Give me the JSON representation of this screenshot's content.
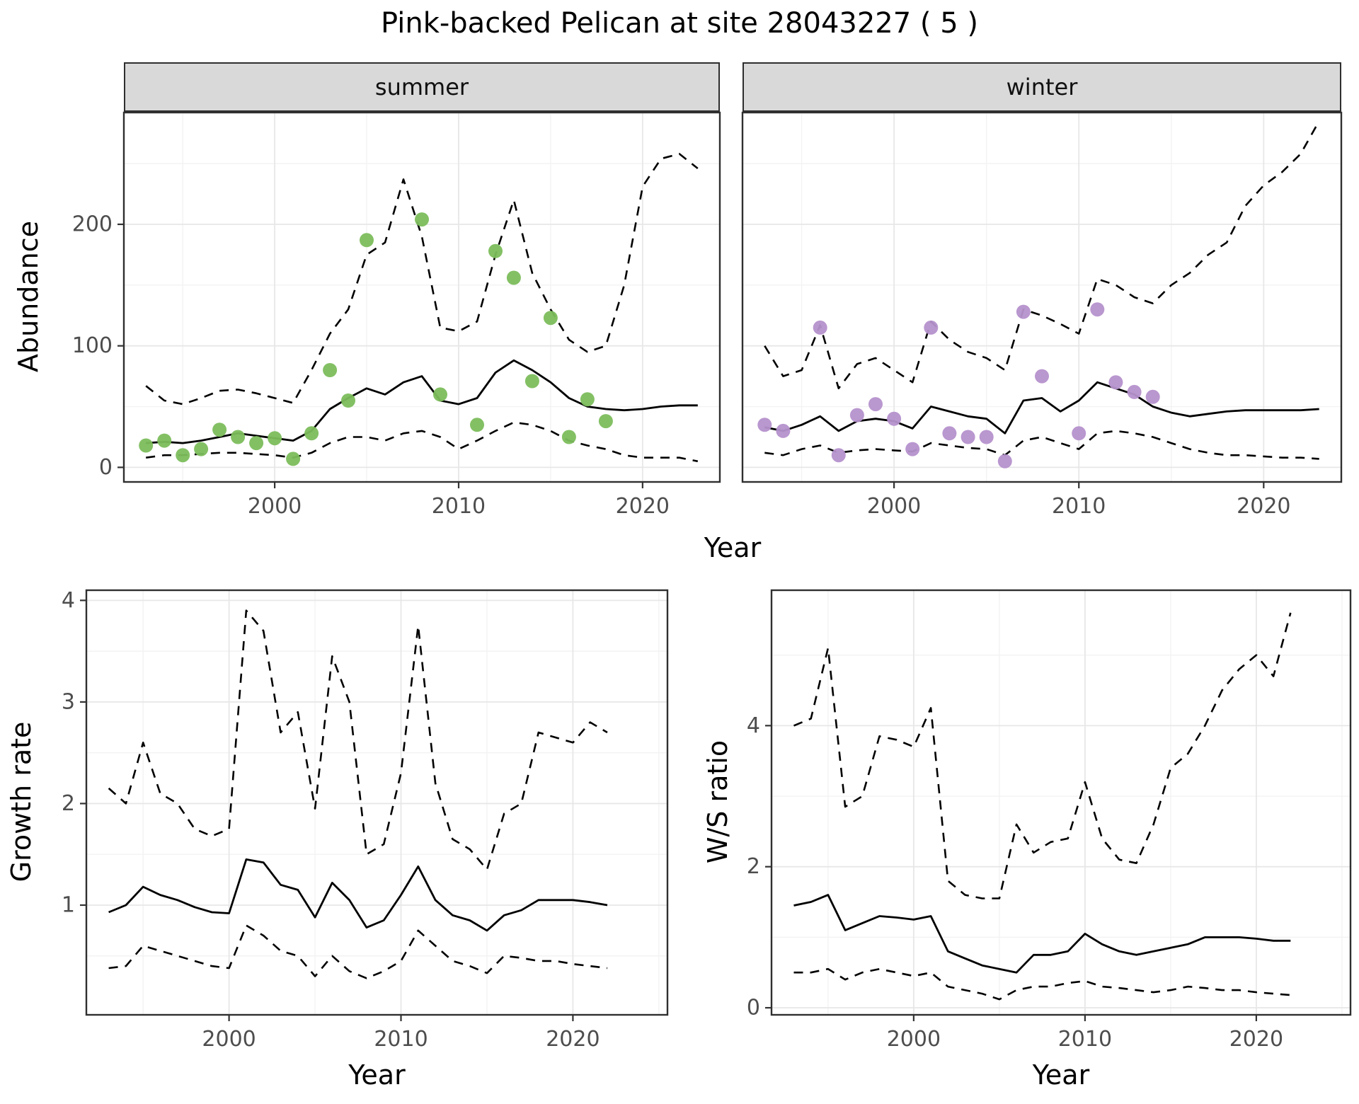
{
  "figure": {
    "title": "Pink-backed Pelican at site 28043227 ( 5 )",
    "top_xlabel": "Year",
    "abundance_ylabel": "Abundance",
    "facets": [
      {
        "label": "summer"
      },
      {
        "label": "winter"
      }
    ]
  },
  "colors": {
    "summer_points": "#7cbd5c",
    "winter_points": "#b591cc",
    "line": "#000000",
    "strip_bg": "#d9d9d9",
    "panel_border": "#2f2f2f",
    "grid_major": "#e7e7e7",
    "tick_label": "#4d4d4d"
  },
  "chart_data": [
    {
      "id": "abundance_summer",
      "type": "line",
      "title": "summer",
      "xlabel": "Year",
      "ylabel": "Abundance",
      "xlim": [
        1991.8,
        2024.2
      ],
      "ylim": [
        -12,
        292
      ],
      "xticks": [
        2000,
        2010,
        2020
      ],
      "yticks": [
        0,
        100,
        200
      ],
      "show_ytick_labels": true,
      "grid": true,
      "legend": "none",
      "x": [
        1993,
        1994,
        1995,
        1996,
        1997,
        1998,
        1999,
        2000,
        2001,
        2002,
        2003,
        2004,
        2005,
        2006,
        2007,
        2008,
        2009,
        2010,
        2011,
        2012,
        2013,
        2014,
        2015,
        2016,
        2017,
        2018,
        2019,
        2020,
        2021,
        2022,
        2023
      ],
      "series": [
        {
          "name": "upper_ci",
          "style": "dashed",
          "values": [
            67,
            55,
            52,
            57,
            63,
            64,
            61,
            57,
            53,
            80,
            110,
            130,
            175,
            185,
            237,
            190,
            115,
            112,
            120,
            175,
            220,
            160,
            130,
            105,
            95,
            100,
            150,
            231,
            254,
            258,
            246
          ]
        },
        {
          "name": "median",
          "style": "solid",
          "values": [
            20,
            21,
            20,
            22,
            25,
            28,
            26,
            24,
            22,
            30,
            48,
            57,
            65,
            60,
            70,
            75,
            55,
            52,
            57,
            78,
            88,
            80,
            70,
            57,
            50,
            48,
            47,
            48,
            50,
            51,
            51
          ]
        },
        {
          "name": "lower_ci",
          "style": "dashed",
          "values": [
            8,
            10,
            10,
            11,
            12,
            12,
            11,
            10,
            8,
            12,
            20,
            25,
            25,
            22,
            28,
            30,
            25,
            15,
            22,
            30,
            37,
            35,
            30,
            22,
            18,
            15,
            10,
            8,
            8,
            8,
            5
          ]
        }
      ],
      "points": {
        "name": "observed_counts",
        "color": "#7cbd5c",
        "x": [
          1993,
          1994,
          1995,
          1996,
          1997,
          1998,
          1999,
          2000,
          2001,
          2002,
          2003,
          2004,
          2005,
          2008,
          2009,
          2011,
          2012,
          2013,
          2014,
          2015,
          2016,
          2017,
          2018
        ],
        "y": [
          18,
          22,
          10,
          15,
          31,
          25,
          20,
          24,
          7,
          28,
          80,
          55,
          187,
          204,
          60,
          35,
          178,
          156,
          71,
          123,
          25,
          56,
          38
        ]
      }
    },
    {
      "id": "abundance_winter",
      "type": "line",
      "title": "winter",
      "xlabel": "Year",
      "ylabel": "Abundance",
      "xlim": [
        1991.8,
        2024.2
      ],
      "ylim": [
        -12,
        292
      ],
      "xticks": [
        2000,
        2010,
        2020
      ],
      "yticks": [
        0,
        100,
        200
      ],
      "show_ytick_labels": false,
      "grid": true,
      "legend": "none",
      "x": [
        1993,
        1994,
        1995,
        1996,
        1997,
        1998,
        1999,
        2000,
        2001,
        2002,
        2003,
        2004,
        2005,
        2006,
        2007,
        2008,
        2009,
        2010,
        2011,
        2012,
        2013,
        2014,
        2015,
        2016,
        2017,
        2018,
        2019,
        2020,
        2021,
        2022,
        2023
      ],
      "series": [
        {
          "name": "upper_ci",
          "style": "dashed",
          "values": [
            100,
            75,
            80,
            117,
            65,
            85,
            90,
            80,
            70,
            120,
            105,
            95,
            90,
            80,
            130,
            125,
            118,
            110,
            155,
            150,
            140,
            135,
            150,
            160,
            175,
            185,
            215,
            232,
            243,
            258,
            285
          ]
        },
        {
          "name": "median",
          "style": "solid",
          "values": [
            33,
            30,
            35,
            42,
            30,
            38,
            40,
            38,
            32,
            50,
            46,
            42,
            40,
            28,
            55,
            57,
            46,
            55,
            70,
            65,
            60,
            50,
            45,
            42,
            44,
            46,
            47,
            47,
            47,
            47,
            48
          ]
        },
        {
          "name": "lower_ci",
          "style": "dashed",
          "values": [
            12,
            10,
            15,
            18,
            12,
            14,
            15,
            14,
            13,
            20,
            18,
            16,
            15,
            10,
            22,
            25,
            20,
            15,
            28,
            30,
            28,
            25,
            20,
            15,
            12,
            10,
            10,
            9,
            8,
            8,
            7
          ]
        }
      ],
      "points": {
        "name": "observed_counts",
        "color": "#b591cc",
        "x": [
          1993,
          1994,
          1996,
          1997,
          1998,
          1999,
          2000,
          2001,
          2002,
          2003,
          2004,
          2005,
          2006,
          2007,
          2008,
          2010,
          2011,
          2012,
          2013,
          2014
        ],
        "y": [
          35,
          30,
          115,
          10,
          43,
          52,
          40,
          15,
          115,
          28,
          25,
          25,
          5,
          128,
          75,
          28,
          130,
          70,
          62,
          58
        ]
      }
    },
    {
      "id": "growth_rate",
      "type": "line",
      "title": "",
      "xlabel": "Year",
      "ylabel": "Growth rate",
      "xlim": [
        1991.7,
        2025.5
      ],
      "ylim": [
        -0.08,
        4.1
      ],
      "xticks": [
        2000,
        2010,
        2020
      ],
      "yticks": [
        1,
        2,
        3,
        4
      ],
      "show_ytick_labels": true,
      "grid": true,
      "legend": "none",
      "x": [
        1993,
        1994,
        1995,
        1996,
        1997,
        1998,
        1999,
        2000,
        2001,
        2002,
        2003,
        2004,
        2005,
        2006,
        2007,
        2008,
        2009,
        2010,
        2011,
        2012,
        2013,
        2014,
        2015,
        2016,
        2017,
        2018,
        2019,
        2020,
        2021,
        2022
      ],
      "series": [
        {
          "name": "upper_ci",
          "style": "dashed",
          "values": [
            2.15,
            2.0,
            2.6,
            2.1,
            2.0,
            1.75,
            1.68,
            1.75,
            3.9,
            3.7,
            2.7,
            2.9,
            1.95,
            3.45,
            3.0,
            1.5,
            1.6,
            2.3,
            3.75,
            2.2,
            1.65,
            1.55,
            1.35,
            1.9,
            2.0,
            2.7,
            2.65,
            2.6,
            2.8,
            2.7
          ]
        },
        {
          "name": "median",
          "style": "solid",
          "values": [
            0.93,
            1.0,
            1.18,
            1.1,
            1.05,
            0.98,
            0.93,
            0.92,
            1.45,
            1.42,
            1.2,
            1.15,
            0.88,
            1.22,
            1.05,
            0.78,
            0.85,
            1.1,
            1.38,
            1.05,
            0.9,
            0.85,
            0.75,
            0.9,
            0.95,
            1.05,
            1.05,
            1.05,
            1.03,
            1.0
          ]
        },
        {
          "name": "lower_ci",
          "style": "dashed",
          "values": [
            0.38,
            0.4,
            0.6,
            0.55,
            0.5,
            0.45,
            0.4,
            0.38,
            0.8,
            0.7,
            0.55,
            0.5,
            0.3,
            0.5,
            0.35,
            0.28,
            0.35,
            0.45,
            0.75,
            0.6,
            0.45,
            0.4,
            0.33,
            0.5,
            0.48,
            0.45,
            0.45,
            0.42,
            0.4,
            0.38
          ]
        }
      ]
    },
    {
      "id": "ws_ratio",
      "type": "line",
      "title": "",
      "xlabel": "Year",
      "ylabel": "W/S ratio",
      "xlim": [
        1991.7,
        2025.5
      ],
      "ylim": [
        -0.1,
        5.92
      ],
      "xticks": [
        2000,
        2010,
        2020
      ],
      "yticks": [
        0,
        2,
        4
      ],
      "show_ytick_labels": true,
      "grid": true,
      "legend": "none",
      "x": [
        1993,
        1994,
        1995,
        1996,
        1997,
        1998,
        1999,
        2000,
        2001,
        2002,
        2003,
        2004,
        2005,
        2006,
        2007,
        2008,
        2009,
        2010,
        2011,
        2012,
        2013,
        2014,
        2015,
        2016,
        2017,
        2018,
        2019,
        2020,
        2021,
        2022
      ],
      "series": [
        {
          "name": "upper_ci",
          "style": "dashed",
          "values": [
            4.0,
            4.1,
            5.1,
            2.85,
            3.0,
            3.85,
            3.8,
            3.7,
            4.25,
            1.8,
            1.6,
            1.55,
            1.55,
            2.6,
            2.2,
            2.35,
            2.4,
            3.2,
            2.4,
            2.1,
            2.05,
            2.6,
            3.4,
            3.6,
            4.0,
            4.5,
            4.8,
            5.0,
            4.7,
            5.6
          ]
        },
        {
          "name": "median",
          "style": "solid",
          "values": [
            1.45,
            1.5,
            1.6,
            1.1,
            1.2,
            1.3,
            1.28,
            1.25,
            1.3,
            0.8,
            0.7,
            0.6,
            0.55,
            0.5,
            0.75,
            0.75,
            0.8,
            1.05,
            0.9,
            0.8,
            0.75,
            0.8,
            0.85,
            0.9,
            1.0,
            1.0,
            1.0,
            0.98,
            0.95,
            0.95
          ]
        },
        {
          "name": "lower_ci",
          "style": "dashed",
          "values": [
            0.5,
            0.5,
            0.55,
            0.4,
            0.5,
            0.55,
            0.5,
            0.45,
            0.5,
            0.3,
            0.25,
            0.2,
            0.12,
            0.25,
            0.3,
            0.3,
            0.35,
            0.38,
            0.3,
            0.28,
            0.25,
            0.22,
            0.25,
            0.3,
            0.28,
            0.25,
            0.25,
            0.22,
            0.2,
            0.18
          ]
        }
      ]
    }
  ]
}
